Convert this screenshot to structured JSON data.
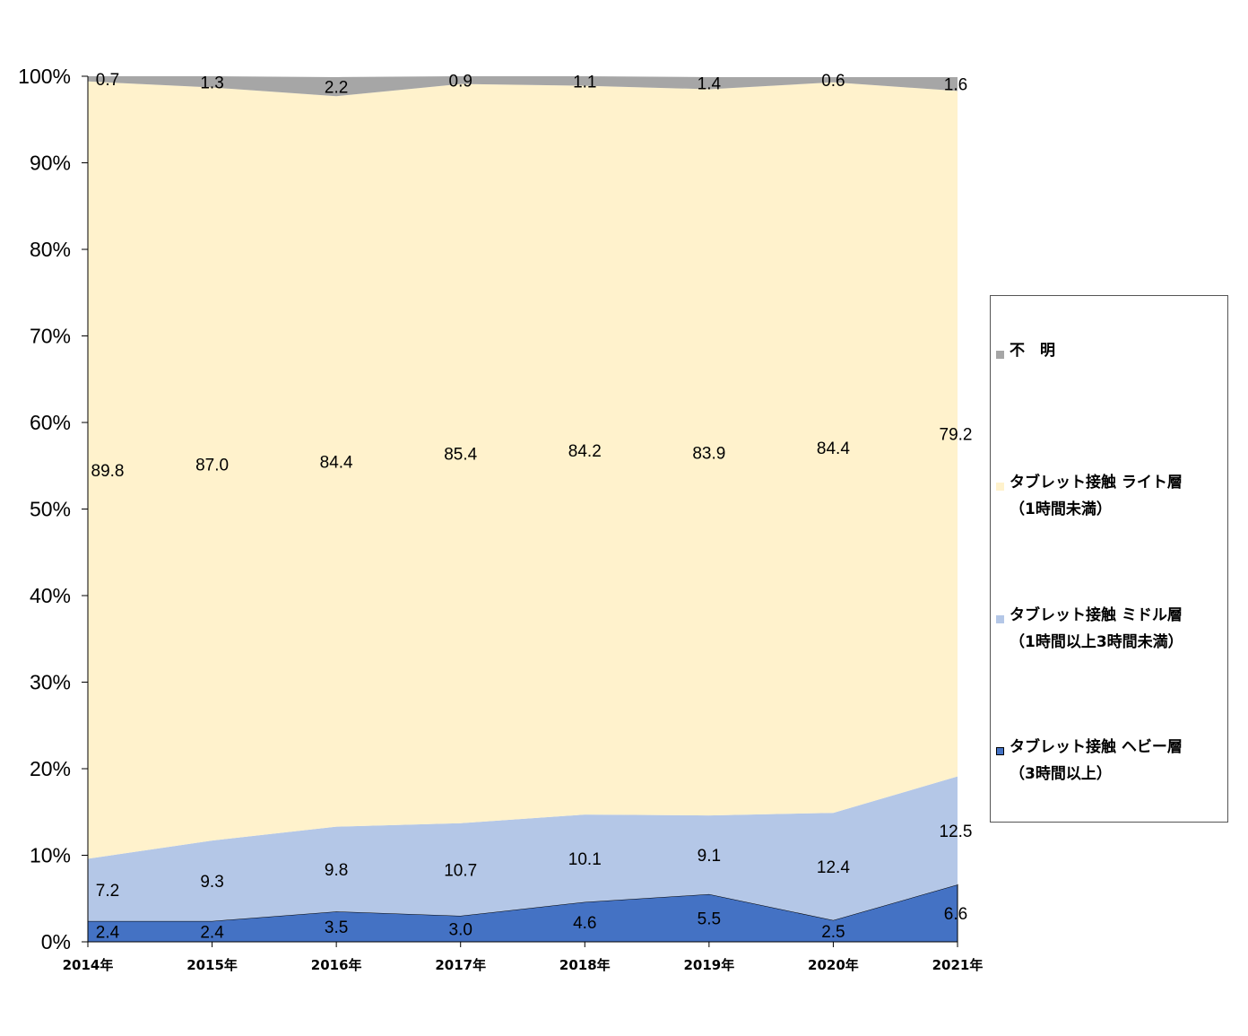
{
  "chart_data": {
    "type": "area",
    "stacked": "percent",
    "categories": [
      "2014年",
      "2015年",
      "2016年",
      "2017年",
      "2018年",
      "2019年",
      "2020年",
      "2021年"
    ],
    "ylim": [
      0,
      100
    ],
    "yticks": [
      "0%",
      "10%",
      "20%",
      "30%",
      "40%",
      "50%",
      "60%",
      "70%",
      "80%",
      "90%",
      "100%"
    ],
    "series": [
      {
        "name_lines": [
          "タブレット接触 ヘビー層",
          "（3時間以上）"
        ],
        "color": "#4472c4",
        "values": [
          2.4,
          2.4,
          3.5,
          3.0,
          4.6,
          5.5,
          2.5,
          6.6
        ],
        "labels": [
          "2.4",
          "2.4",
          "3.5",
          "3.0",
          "4.6",
          "5.5",
          "2.5",
          "6.6"
        ]
      },
      {
        "name_lines": [
          "タブレット接触 ミドル層",
          "（1時間以上3時間未満）"
        ],
        "color": "#b4c7e7",
        "values": [
          7.2,
          9.3,
          9.8,
          10.7,
          10.1,
          9.1,
          12.4,
          12.5
        ],
        "labels": [
          "7.2",
          "9.3",
          "9.8",
          "10.7",
          "10.1",
          "9.1",
          "12.4",
          "12.5"
        ]
      },
      {
        "name_lines": [
          "タブレット接触 ライト層",
          "（1時間未満）"
        ],
        "color": "#fff2cc",
        "values": [
          89.8,
          87.0,
          84.4,
          85.4,
          84.2,
          83.9,
          84.4,
          79.2
        ],
        "labels": [
          "89.8",
          "87.0",
          "84.4",
          "85.4",
          "84.2",
          "83.9",
          "84.4",
          "79.2"
        ]
      },
      {
        "name_lines": [
          "不　明"
        ],
        "color": "#a6a6a6",
        "values": [
          0.7,
          1.3,
          2.2,
          0.9,
          1.1,
          1.4,
          0.6,
          1.6
        ],
        "labels": [
          "0.7",
          "1.3",
          "2.2",
          "0.9",
          "1.1",
          "1.4",
          "0.6",
          "1.6"
        ]
      }
    ],
    "legend_position": "right"
  }
}
